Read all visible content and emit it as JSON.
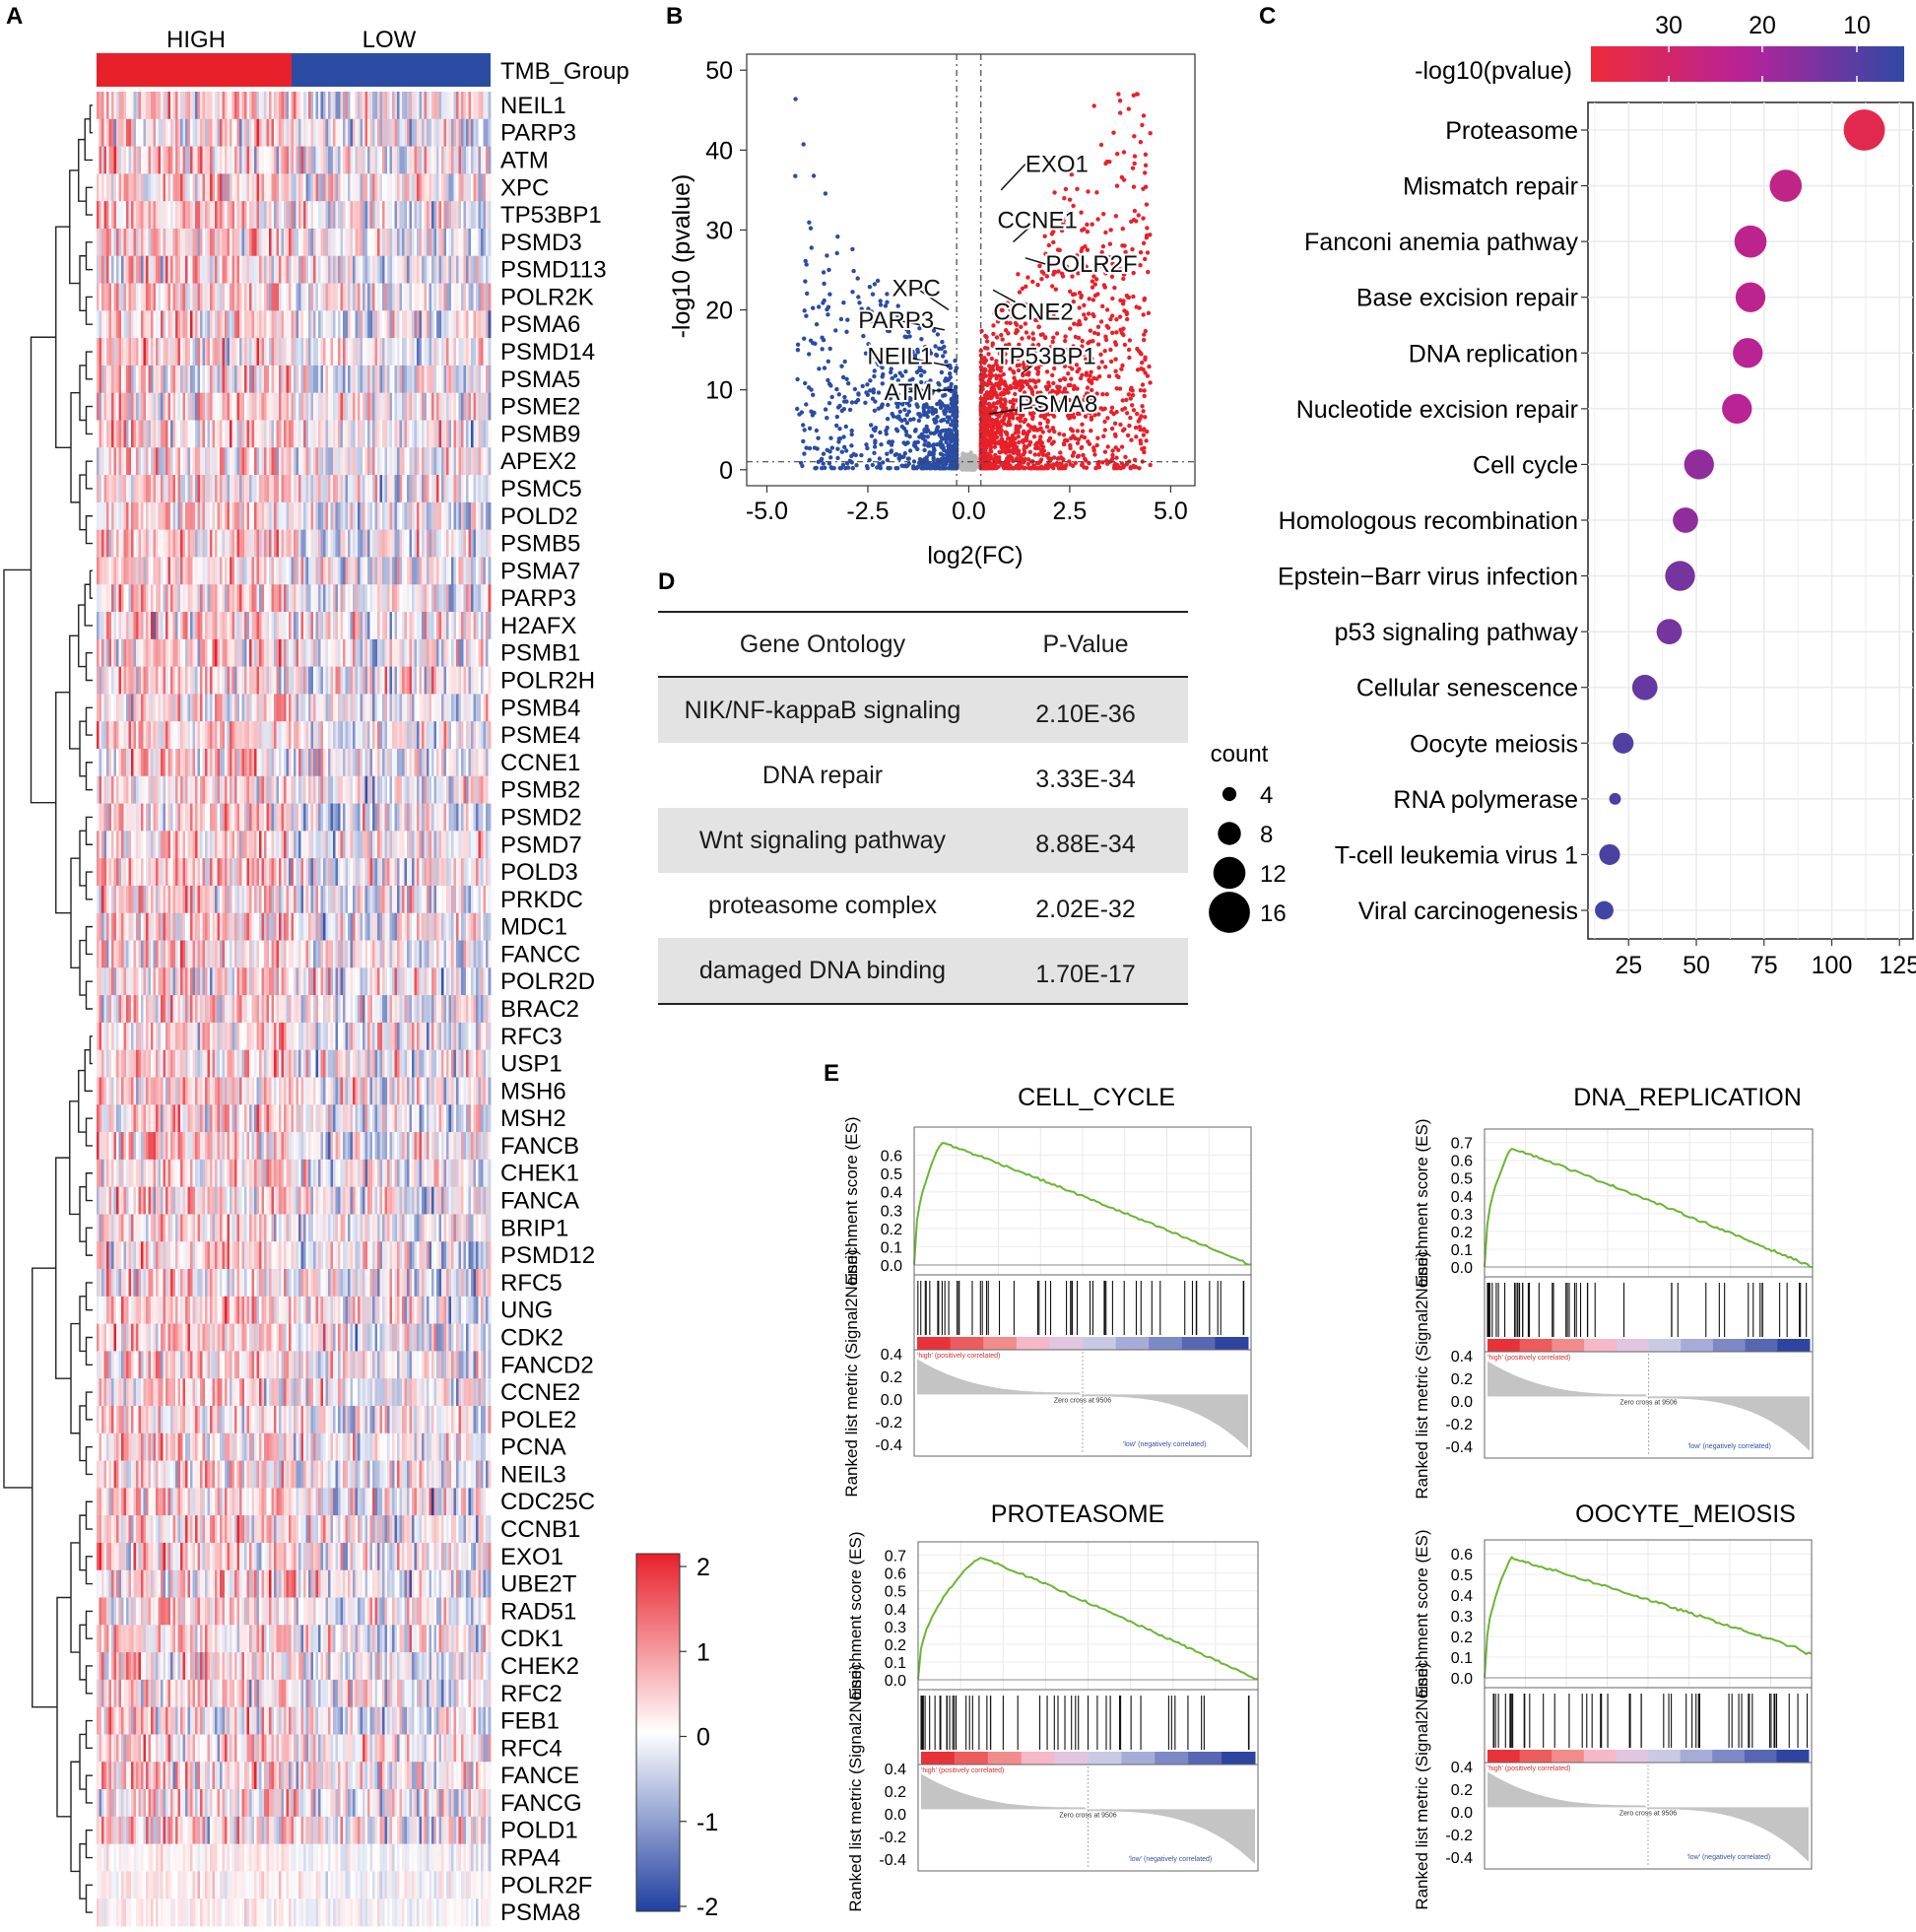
{
  "panels": {
    "labels": [
      "A",
      "B",
      "C",
      "D",
      "E"
    ]
  },
  "colors": {
    "high": "#e8202a",
    "low": "#2a4da3",
    "neutral": "#b8b8b8",
    "green": "#6ab631"
  },
  "chart_data": [
    {
      "id": "A",
      "type": "heatmap",
      "group_label": "TMB_Group",
      "groups": [
        "HIGH",
        "LOW"
      ],
      "genes": [
        "NEIL1",
        "PARP3",
        "ATM",
        "XPC",
        "TP53BP1",
        "PSMD3",
        "PSMD113",
        "POLR2K",
        "PSMA6",
        "PSMD14",
        "PSMA5",
        "PSME2",
        "PSMB9",
        "APEX2",
        "PSMC5",
        "POLD2",
        "PSMB5",
        "PSMA7",
        "PARP3",
        "H2AFX",
        "PSMB1",
        "POLR2H",
        "PSMB4",
        "PSME4",
        "CCNE1",
        "PSMB2",
        "PSMD2",
        "PSMD7",
        "POLD3",
        "PRKDC",
        "MDC1",
        "FANCC",
        "POLR2D",
        "BRAC2",
        "RFC3",
        "USP1",
        "MSH6",
        "MSH2",
        "FANCB",
        "CHEK1",
        "FANCA",
        "BRIP1",
        "PSMD12",
        "RFC5",
        "UNG",
        "CDK2",
        "FANCD2",
        "CCNE2",
        "POLE2",
        "PCNA",
        "NEIL3",
        "CDC25C",
        "CCNB1",
        "EXO1",
        "UBE2T",
        "RAD51",
        "CDK1",
        "CHEK2",
        "RFC2",
        "FEB1",
        "RFC4",
        "FANCE",
        "FANCG",
        "POLD1",
        "RPA4",
        "POLR2F",
        "PSMA8"
      ],
      "scale": {
        "min": -2,
        "max": 2,
        "ticks": [
          "2",
          "1",
          "0",
          "-1",
          "-2"
        ]
      }
    },
    {
      "id": "B",
      "type": "scatter",
      "xlabel": "log2(FC)",
      "ylabel": "-log10 (pvalue)",
      "xlim": [
        -5.5,
        5.6
      ],
      "ylim": [
        -2,
        52
      ],
      "xticks": [
        "-5.0",
        "-2.5",
        "0.0",
        "2.5",
        "5.0"
      ],
      "xtick_values": [
        -5,
        -2.5,
        0,
        2.5,
        5
      ],
      "yticks": [
        "0",
        "10",
        "20",
        "30",
        "40",
        "50"
      ],
      "ytick_values": [
        0,
        10,
        20,
        30,
        40,
        50
      ],
      "thresholds": {
        "x": [
          -0.3,
          0.3
        ],
        "y": 1
      },
      "labels": [
        {
          "text": "EXO1",
          "x": 0.8,
          "y": 35,
          "tx": 1.4,
          "ty": 37.5,
          "anchor": "start"
        },
        {
          "text": "CCNE1",
          "x": 1.1,
          "y": 28.5,
          "tx": 1.7,
          "ty": 30.5,
          "anchor": "middle"
        },
        {
          "text": "POLR2F",
          "x": 1.4,
          "y": 26.5,
          "tx": 1.9,
          "ty": 25,
          "anchor": "start"
        },
        {
          "text": "CCNE2",
          "x": 0.6,
          "y": 22.5,
          "tx": 1.6,
          "ty": 19,
          "anchor": "middle"
        },
        {
          "text": "XPC",
          "x": -0.5,
          "y": 20,
          "tx": -1.3,
          "ty": 22,
          "anchor": "middle"
        },
        {
          "text": "PARP3",
          "x": -0.6,
          "y": 17.5,
          "tx": -1.8,
          "ty": 18,
          "anchor": "middle"
        },
        {
          "text": "NEIL1",
          "x": -0.5,
          "y": 13,
          "tx": -1.7,
          "ty": 13.5,
          "anchor": "middle"
        },
        {
          "text": "ATM",
          "x": -0.4,
          "y": 10,
          "tx": -1.5,
          "ty": 9,
          "anchor": "middle"
        },
        {
          "text": "TP53BP1",
          "x": 1.3,
          "y": 12,
          "tx": 1.9,
          "ty": 13.5,
          "anchor": "middle"
        },
        {
          "text": "PSMA8",
          "x": 0.5,
          "y": 7,
          "tx": 2.2,
          "ty": 7.5,
          "anchor": "middle"
        }
      ]
    },
    {
      "id": "C",
      "type": "scatter",
      "xlabel": "",
      "xlim": [
        10,
        130
      ],
      "xticks": [
        "25",
        "50",
        "75",
        "100",
        "125"
      ],
      "xtick_values": [
        25,
        50,
        75,
        100,
        125
      ],
      "color_label": "-log10(pvalue)",
      "color_ticks": [
        "30",
        "20",
        "10"
      ],
      "size_label": "count",
      "size_legend": [
        "4",
        "8",
        "12",
        "16"
      ],
      "terms": [
        {
          "name": "Proteasome",
          "x": 112,
          "count": 16,
          "p": 35
        },
        {
          "name": "Mismatch repair",
          "x": 83,
          "count": 12,
          "p": 26
        },
        {
          "name": "Fanconi anemia pathway",
          "x": 70,
          "count": 12,
          "p": 25
        },
        {
          "name": "Base excision repair",
          "x": 70,
          "count": 11,
          "p": 25
        },
        {
          "name": "DNA replication",
          "x": 69,
          "count": 11,
          "p": 24
        },
        {
          "name": "Nucleotide excision repair",
          "x": 65,
          "count": 11,
          "p": 24
        },
        {
          "name": "Cell cycle",
          "x": 51,
          "count": 11,
          "p": 19
        },
        {
          "name": "Homologous recombination",
          "x": 46,
          "count": 9,
          "p": 19
        },
        {
          "name": "Epstein−Barr virus infection",
          "x": 44,
          "count": 11,
          "p": 16
        },
        {
          "name": "p53 signaling pathway",
          "x": 40,
          "count": 9,
          "p": 16
        },
        {
          "name": "Cellular senescence",
          "x": 31,
          "count": 9,
          "p": 14
        },
        {
          "name": "Oocyte meiosis",
          "x": 23,
          "count": 7,
          "p": 12
        },
        {
          "name": "RNA polymerase",
          "x": 20,
          "count": 3,
          "p": 11
        },
        {
          "name": "T-cell leukemia virus 1",
          "x": 18,
          "count": 7,
          "p": 11
        },
        {
          "name": "Viral carcinogenesis",
          "x": 16,
          "count": 6,
          "p": 10
        }
      ]
    },
    {
      "id": "D",
      "type": "table",
      "columns": [
        "Gene Ontology",
        "P-Value"
      ],
      "rows": [
        [
          "NIK/NF-kappaB signaling",
          "2.10E-36"
        ],
        [
          "DNA repair",
          "3.33E-34"
        ],
        [
          "Wnt signaling pathway",
          "8.88E-34"
        ],
        [
          "proteasome complex",
          "2.02E-32"
        ],
        [
          "damaged DNA binding",
          "1.70E-17"
        ]
      ]
    },
    {
      "id": "E",
      "type": "line",
      "es_label": "Enrichment score (ES)",
      "rank_label": "Ranked list metric (Signal2Noise)",
      "pos_text": "'high' (positively correlated)",
      "neg_text": "'low' (negatively correlated)",
      "zero_text": "Zero cross at 9506",
      "rank_ticks": [
        "0.4",
        "0.2",
        "0.0",
        "-0.2",
        "-0.4"
      ],
      "plots": [
        {
          "title": "CELL_CYCLE",
          "es_max": 0.7,
          "es_ticks": [
            "0.6",
            "0.5",
            "0.4",
            "0.3",
            "0.2",
            "0.1",
            "0.0"
          ],
          "es_tick_values": [
            0.6,
            0.5,
            0.4,
            0.3,
            0.2,
            0.1,
            0.0
          ],
          "peak": 0.67,
          "peak_at": 0.08,
          "end_val": 0.0
        },
        {
          "title": "DNA_REPLICATION",
          "es_max": 0.72,
          "es_ticks": [
            "0.7",
            "0.6",
            "0.5",
            "0.4",
            "0.3",
            "0.2",
            "0.1",
            "0.0"
          ],
          "es_tick_values": [
            0.7,
            0.6,
            0.5,
            0.4,
            0.3,
            0.2,
            0.1,
            0.0
          ],
          "peak": 0.67,
          "peak_at": 0.08,
          "end_val": 0.0
        },
        {
          "title": "PROTEASOME",
          "es_max": 0.72,
          "es_ticks": [
            "0.7",
            "0.6",
            "0.5",
            "0.4",
            "0.3",
            "0.2",
            "0.1",
            "0.0"
          ],
          "es_tick_values": [
            0.7,
            0.6,
            0.5,
            0.4,
            0.3,
            0.2,
            0.1,
            0.0
          ],
          "peak": 0.69,
          "peak_at": 0.18,
          "end_val": 0.0
        },
        {
          "title": "OOCYTE_MEIOSIS",
          "es_max": 0.62,
          "es_ticks": [
            "0.6",
            "0.5",
            "0.4",
            "0.3",
            "0.2",
            "0.1",
            "0.0"
          ],
          "es_tick_values": [
            0.6,
            0.5,
            0.4,
            0.3,
            0.2,
            0.1,
            0.0
          ],
          "peak": 0.58,
          "peak_at": 0.08,
          "end_val": 0.12
        }
      ]
    }
  ]
}
